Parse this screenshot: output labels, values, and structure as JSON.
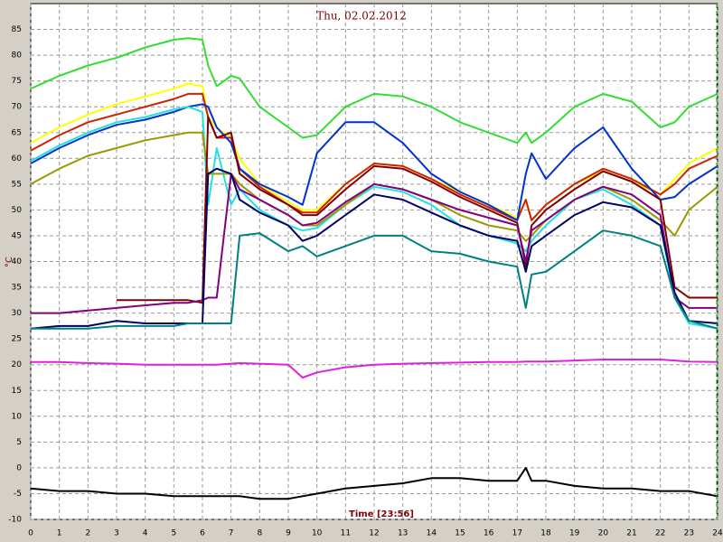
{
  "chart_data": {
    "type": "line",
    "title": "Thu, 02.02.2012",
    "x_label": "Time [23:56]",
    "y_label": "°C",
    "x": [
      0,
      1,
      2,
      3,
      4,
      5,
      5.5,
      6,
      6.2,
      6.5,
      7,
      7.3,
      8,
      9,
      9.5,
      10,
      11,
      12,
      13,
      14,
      15,
      16,
      17,
      17.3,
      17.5,
      18,
      19,
      20,
      21,
      22,
      22.5,
      23,
      24
    ],
    "xlim": [
      0,
      24
    ],
    "xticks": [
      0,
      1,
      2,
      3,
      4,
      5,
      6,
      7,
      8,
      9,
      10,
      11,
      12,
      13,
      14,
      15,
      16,
      17,
      18,
      19,
      20,
      21,
      22,
      23,
      24
    ],
    "ylim": [
      -10,
      90
    ],
    "yticks": [
      -10,
      -5,
      0,
      5,
      10,
      15,
      20,
      25,
      30,
      35,
      40,
      45,
      50,
      55,
      60,
      65,
      70,
      75,
      80,
      85
    ],
    "grid": true,
    "series": [
      {
        "color": "#33dd33",
        "values": [
          73.5,
          76,
          78,
          79.5,
          81.5,
          83,
          83.3,
          83,
          78,
          74,
          76,
          75.5,
          70,
          66,
          64,
          64.5,
          70,
          72.5,
          72,
          70,
          67,
          65,
          63,
          65,
          63,
          65,
          70,
          72.5,
          71,
          66,
          67,
          70,
          72.5
        ]
      },
      {
        "color": "#ffff00",
        "values": [
          63,
          66,
          68.5,
          70.5,
          72,
          73.5,
          74.5,
          74,
          68,
          66,
          64,
          60,
          55,
          51.5,
          50,
          50,
          55,
          59,
          58.5,
          56,
          53.5,
          51,
          48.5,
          52,
          48,
          51,
          55,
          57.5,
          55.5,
          53,
          56,
          59,
          62
        ]
      },
      {
        "color": "#cc2200",
        "values": [
          61.5,
          64.5,
          67,
          68.5,
          70,
          71.5,
          72.5,
          72.5,
          68,
          64,
          64,
          58,
          54.5,
          51,
          49.5,
          49.5,
          55,
          59,
          58.5,
          56,
          53,
          50.5,
          48,
          52,
          48,
          51,
          55,
          58,
          56,
          53,
          55,
          58,
          60.5
        ]
      },
      {
        "color": "#0033cc",
        "values": [
          59,
          62,
          64.5,
          66.5,
          67.5,
          69,
          70,
          70.5,
          70,
          66,
          63,
          58,
          55,
          52.5,
          51,
          61,
          67,
          67,
          63,
          57,
          53.5,
          51,
          48,
          57,
          61,
          56,
          62,
          66,
          58,
          52,
          52.5,
          55,
          58.5
        ]
      },
      {
        "color": "#22e0e0",
        "values": [
          59.5,
          62.5,
          65,
          67,
          68,
          69.5,
          70,
          69,
          51,
          62,
          51,
          54,
          50,
          47,
          46,
          46.5,
          51,
          54.5,
          53.5,
          51,
          47,
          45,
          43.5,
          42,
          44,
          47,
          52,
          54,
          51,
          47,
          33,
          28,
          27
        ]
      },
      {
        "color": "#999900",
        "values": [
          55,
          58,
          60.5,
          62,
          63.5,
          64.5,
          65,
          65,
          57,
          57,
          57,
          55,
          52,
          49,
          47,
          47,
          51,
          55,
          54,
          52,
          49,
          47,
          46,
          44,
          45,
          48,
          52,
          54.5,
          52,
          48,
          45,
          50,
          54.5
        ]
      },
      {
        "color": "#800000",
        "values": [
          null,
          null,
          null,
          32.5,
          32.5,
          32.5,
          32.5,
          32,
          68,
          64,
          65,
          57,
          54,
          51,
          49,
          49,
          54,
          58.5,
          58,
          55.5,
          52.5,
          50,
          47.5,
          39,
          47,
          50,
          54,
          57.5,
          55.5,
          52,
          35,
          33,
          33
        ]
      },
      {
        "color": "#800080",
        "values": [
          30,
          30,
          30.5,
          31,
          31.5,
          32,
          32,
          32.5,
          33,
          33,
          57,
          54,
          52,
          49,
          47,
          47.5,
          51.5,
          55,
          54,
          52,
          50,
          48.5,
          47,
          40,
          46,
          48,
          52,
          54.5,
          53,
          49,
          33,
          31,
          31
        ]
      },
      {
        "color": "#000066",
        "values": [
          27,
          27.5,
          27.5,
          28.5,
          28,
          28,
          28,
          28,
          57,
          58,
          57,
          52,
          49.5,
          47,
          44,
          45,
          49,
          53,
          52,
          49.5,
          47,
          45,
          44,
          38,
          43,
          45,
          49,
          51.5,
          50.5,
          47,
          34,
          28.5,
          28
        ]
      },
      {
        "color": "#008080",
        "values": [
          27,
          27,
          27,
          27.5,
          27.5,
          27.5,
          28,
          28,
          28,
          28,
          28,
          45,
          45.5,
          42,
          43,
          41,
          43,
          45,
          45,
          42,
          41.5,
          40,
          39,
          31,
          37.5,
          38,
          42,
          46,
          45,
          43,
          33,
          28.5,
          27
        ]
      },
      {
        "color": "#dd22dd",
        "values": [
          20.5,
          20.5,
          20.3,
          20.2,
          20,
          20,
          20,
          20,
          20,
          20,
          20.2,
          20.3,
          20.2,
          20,
          17.5,
          18.5,
          19.5,
          20,
          20.2,
          20.3,
          20.4,
          20.5,
          20.5,
          20.6,
          20.6,
          20.6,
          20.8,
          21,
          21,
          21,
          20.8,
          20.6,
          20.5
        ]
      },
      {
        "color": "#000000",
        "values": [
          -4,
          -4.5,
          -4.5,
          -5,
          -5,
          -5.5,
          -5.5,
          -5.5,
          -5.5,
          -5.5,
          -5.5,
          -5.5,
          -6,
          -6,
          -5.5,
          -5,
          -4,
          -3.5,
          -3,
          -2,
          -2,
          -2.5,
          -2.5,
          0,
          -2.5,
          -2.5,
          -3.5,
          -4,
          -4,
          -4.5,
          -4.5,
          -4.5,
          -5.5
        ]
      }
    ]
  }
}
